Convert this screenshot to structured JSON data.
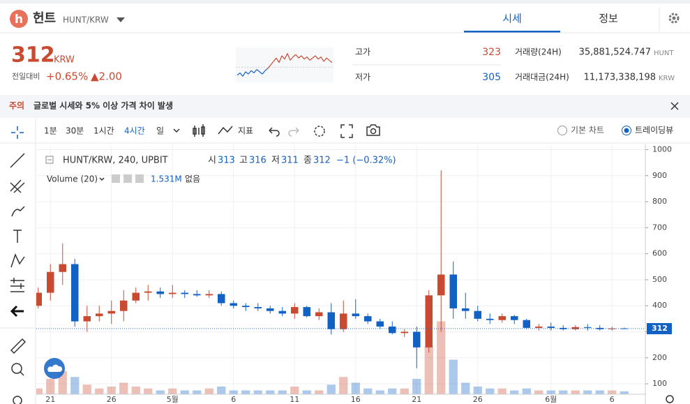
{
  "header": {
    "logo": "h",
    "name": "헌트",
    "pair": "HUNT/KRW",
    "tabs": [
      "시세",
      "정보"
    ]
  },
  "price": {
    "value": "312",
    "unit": "KRW",
    "change_label": "전일대비",
    "change_rate": "+0.65%",
    "change": "▲2.00"
  },
  "sparkline": {
    "values": [
      303,
      305,
      302,
      306,
      304,
      307,
      305,
      308,
      306,
      304,
      307,
      309,
      312,
      315,
      318,
      314,
      320,
      317,
      322,
      316,
      319,
      321,
      318,
      320,
      317,
      319,
      316,
      318,
      320,
      317,
      319,
      315,
      318,
      316,
      314
    ],
    "base": 310,
    "ylim": [
      298,
      326
    ],
    "up_color": "#c84a31",
    "down_color": "#1261c4"
  },
  "stats": {
    "high_label": "고가",
    "high": "323",
    "low_label": "저가",
    "low": "305",
    "volume_label": "거래량(24H)",
    "volume": "35,881,524.747",
    "volume_unit": "HUNT",
    "amount_label": "거래대금(24H)",
    "amount": "11,173,338,198",
    "amount_unit": "KRW"
  },
  "notice": {
    "tag": "주의",
    "text": "글로벌 시세와 5% 이상 가격 차이 발생"
  },
  "toolbar": {
    "intervals": [
      "1분",
      "30분",
      "1시간",
      "4시간",
      "일"
    ],
    "indicator": "지표",
    "basic_chart": "기본 차트",
    "tradingview": "트레이딩뷰"
  },
  "legend": {
    "symbol": "HUNT/KRW, 240, UPBIT",
    "open_label": "시",
    "high_label": "고",
    "low_label": "저",
    "close_label": "종",
    "change": "−1 (−0.32%)",
    "volume": "Volume (20)",
    "volume_value": "1.531M",
    "none": "없음"
  },
  "chart_data": {
    "type": "candlestick",
    "categories": [
      null,
      "21",
      null,
      null,
      null,
      null,
      "26",
      null,
      null,
      null,
      null,
      "5월",
      null,
      null,
      null,
      null,
      "6",
      null,
      null,
      null,
      null,
      "11",
      null,
      null,
      null,
      null,
      "16",
      null,
      null,
      null,
      null,
      "21",
      null,
      null,
      null,
      null,
      "26",
      null,
      null,
      null,
      null,
      null,
      "6월",
      null,
      null,
      null,
      null,
      "6",
      null
    ],
    "open": [
      400,
      450,
      530,
      560,
      340,
      360,
      370,
      380,
      420,
      450,
      455,
      445,
      450,
      445,
      440,
      445,
      410,
      400,
      395,
      390,
      380,
      370,
      395,
      360,
      375,
      310,
      370,
      360,
      340,
      320,
      295,
      300,
      240,
      440,
      520,
      390,
      380,
      350,
      345,
      360,
      345,
      315,
      320,
      315,
      310,
      318,
      315,
      310,
      313
    ],
    "high": [
      470,
      560,
      640,
      580,
      400,
      400,
      420,
      460,
      470,
      480,
      470,
      480,
      460,
      460,
      460,
      455,
      420,
      410,
      410,
      400,
      395,
      410,
      400,
      390,
      410,
      420,
      425,
      370,
      350,
      340,
      310,
      320,
      460,
      920,
      570,
      450,
      400,
      370,
      370,
      365,
      350,
      330,
      335,
      325,
      325,
      330,
      325,
      320,
      316
    ],
    "low": [
      390,
      420,
      480,
      320,
      300,
      340,
      330,
      340,
      410,
      420,
      430,
      430,
      430,
      435,
      430,
      400,
      390,
      380,
      380,
      370,
      360,
      350,
      355,
      345,
      290,
      300,
      350,
      330,
      310,
      290,
      280,
      160,
      220,
      300,
      350,
      350,
      340,
      330,
      335,
      330,
      310,
      305,
      305,
      305,
      305,
      305,
      305,
      305,
      311
    ],
    "close": [
      450,
      530,
      560,
      340,
      360,
      370,
      380,
      420,
      450,
      455,
      445,
      450,
      445,
      440,
      445,
      410,
      400,
      395,
      390,
      380,
      370,
      395,
      360,
      375,
      310,
      370,
      360,
      340,
      320,
      295,
      300,
      240,
      440,
      520,
      390,
      380,
      350,
      345,
      360,
      345,
      315,
      320,
      315,
      310,
      318,
      315,
      310,
      313,
      312
    ],
    "volume": [
      3000000,
      8000000,
      12000000,
      9000000,
      5000000,
      3000000,
      4000000,
      6000000,
      4000000,
      3000000,
      2000000,
      3000000,
      2000000,
      2000000,
      3000000,
      4000000,
      2000000,
      2000000,
      2000000,
      2000000,
      2000000,
      4000000,
      2000000,
      2000000,
      5000000,
      9000000,
      6000000,
      3000000,
      2000000,
      3000000,
      3000000,
      8000000,
      25000000,
      38000000,
      18000000,
      6000000,
      4000000,
      3000000,
      3000000,
      2000000,
      3000000,
      2000000,
      2000000,
      2000000,
      2000000,
      2000000,
      2000000,
      2000000,
      1531000
    ],
    "up_color": "#c84a31",
    "down_color": "#1261c4",
    "ylim": [
      60,
      1020
    ],
    "yticks": [
      100,
      200,
      300,
      400,
      500,
      600,
      700,
      800,
      900,
      1000
    ],
    "vlim": [
      0,
      40000000
    ],
    "grid": true
  }
}
